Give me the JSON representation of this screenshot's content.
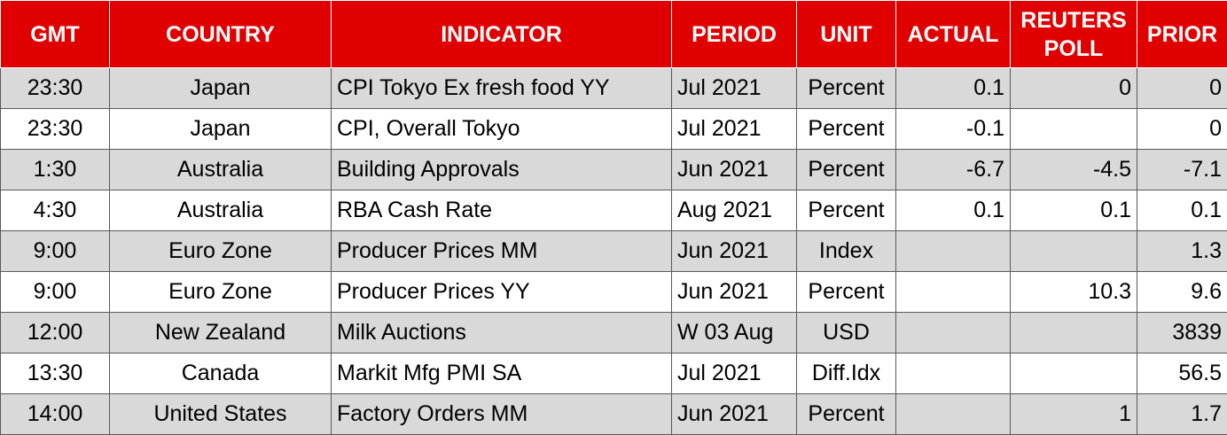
{
  "headers": [
    "GMT",
    "COUNTRY",
    "INDICATOR",
    "PERIOD",
    "UNIT",
    "ACTUAL",
    "REUTERS POLL",
    "PRIOR"
  ],
  "rows": [
    [
      "23:30",
      "Japan",
      "CPI Tokyo Ex fresh food YY",
      "Jul 2021",
      "Percent",
      "0.1",
      "0",
      "0"
    ],
    [
      "23:30",
      "Japan",
      "CPI, Overall Tokyo",
      "Jul 2021",
      "Percent",
      "-0.1",
      "",
      "0"
    ],
    [
      "1:30",
      "Australia",
      "Building Approvals",
      "Jun 2021",
      "Percent",
      "-6.7",
      "-4.5",
      "-7.1"
    ],
    [
      "4:30",
      "Australia",
      "RBA Cash Rate",
      "Aug 2021",
      "Percent",
      "0.1",
      "0.1",
      "0.1"
    ],
    [
      "9:00",
      "Euro Zone",
      "Producer Prices MM",
      "Jun 2021",
      "Index",
      "",
      "",
      "1.3"
    ],
    [
      "9:00",
      "Euro Zone",
      "Producer Prices YY",
      "Jun 2021",
      "Percent",
      "",
      "10.3",
      "9.6"
    ],
    [
      "12:00",
      "New Zealand",
      "Milk Auctions",
      "W 03 Aug",
      "USD",
      "",
      "",
      "3839"
    ],
    [
      "13:30",
      "Canada",
      "Markit Mfg PMI SA",
      "Jul 2021",
      "Diff.Idx",
      "",
      "",
      "56.5"
    ],
    [
      "14:00",
      "United States",
      "Factory Orders MM",
      "Jun 2021",
      "Percent",
      "",
      "1",
      "1.7"
    ]
  ],
  "colors": {
    "header_bg": "#e00000",
    "header_text": "#ffffff",
    "row_alt": "#d9d9d9"
  }
}
